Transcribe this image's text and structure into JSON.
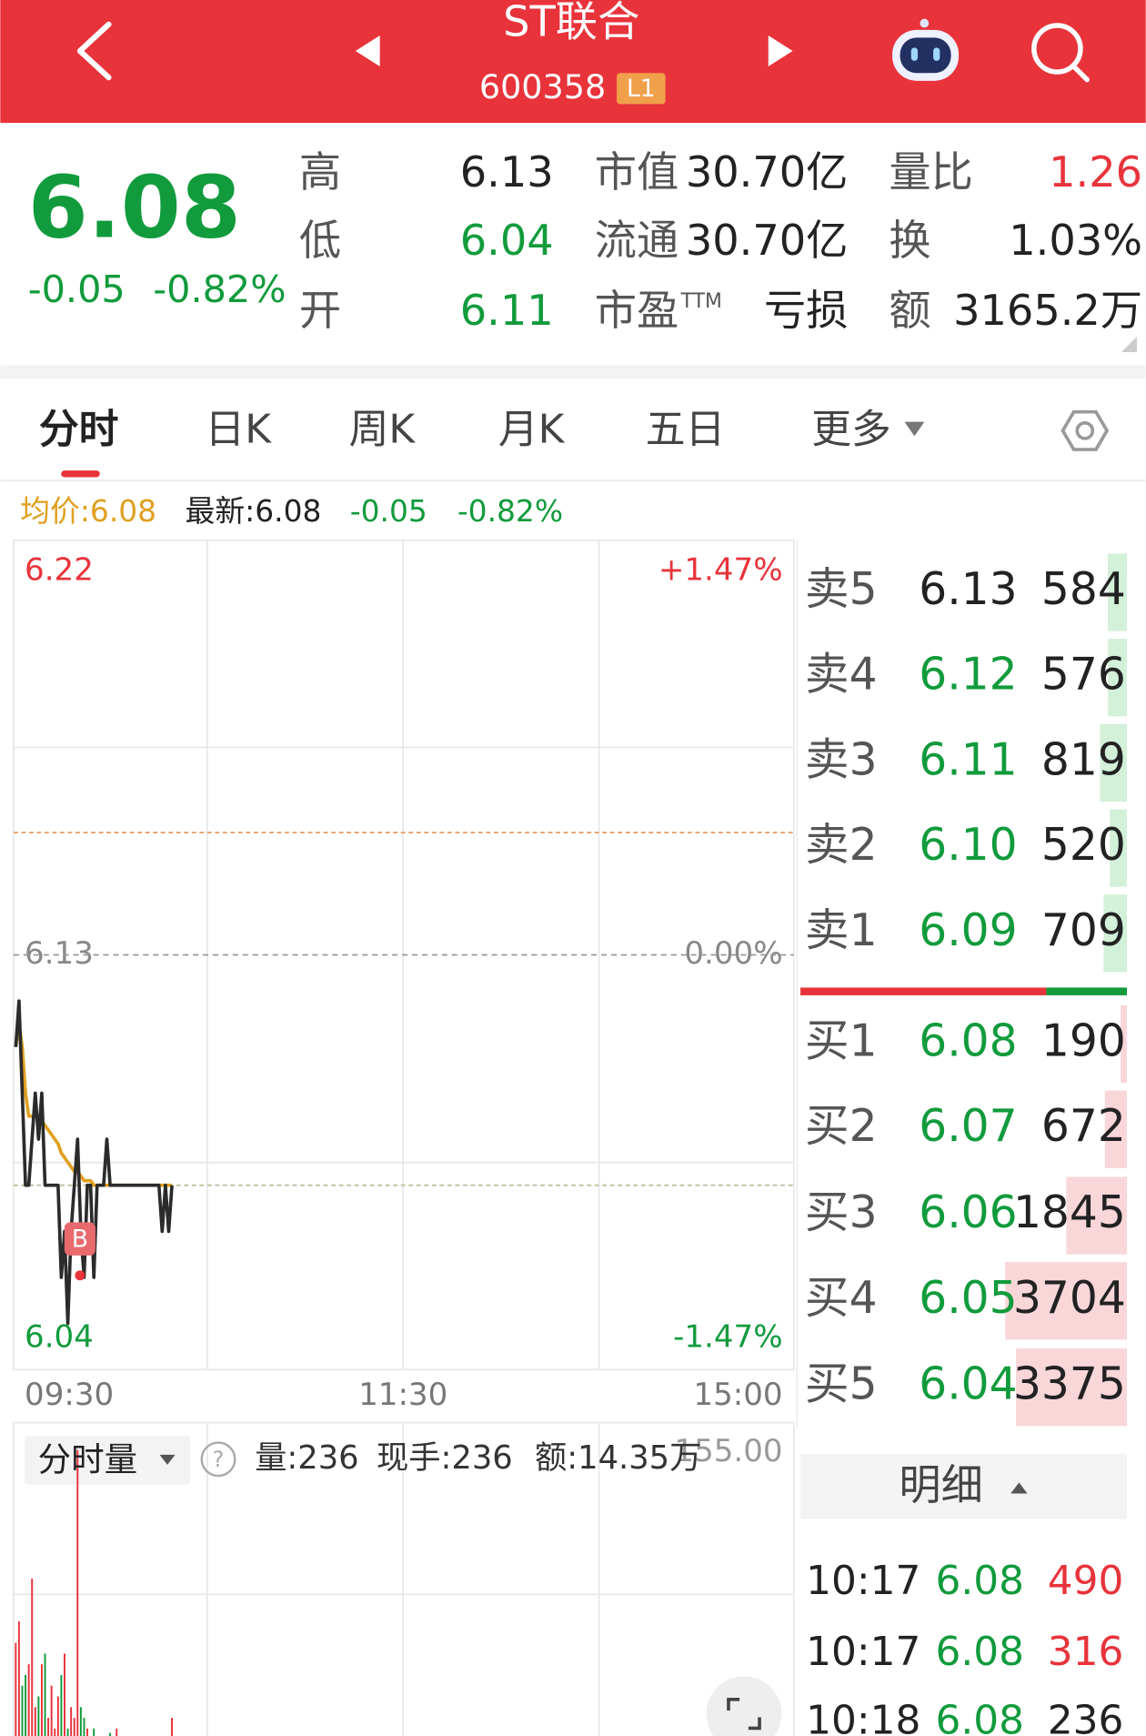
{
  "header": {
    "title": "ST联合",
    "code": "600358",
    "badge": "L1"
  },
  "quote": {
    "price": "6.08",
    "change": "-0.05",
    "change_pct": "-0.82%",
    "stats": [
      [
        {
          "label": "高",
          "value": "6.13",
          "color": "#222222"
        },
        {
          "label": "市值",
          "value": "30.70亿",
          "color": "#222222"
        },
        {
          "label": "量比",
          "value": "1.26",
          "color": "#e8333b"
        }
      ],
      [
        {
          "label": "低",
          "value": "6.04",
          "color": "#119b3c"
        },
        {
          "label": "流通",
          "value": "30.70亿",
          "color": "#222222"
        },
        {
          "label": "换",
          "value": "1.03%",
          "color": "#222222"
        }
      ],
      [
        {
          "label": "开",
          "value": "6.11",
          "color": "#119b3c"
        },
        {
          "label": "市盈",
          "label_sup": "TTM",
          "value": "亏损",
          "color": "#222222"
        },
        {
          "label": "额",
          "value": "3165.2万",
          "color": "#222222"
        }
      ]
    ]
  },
  "tabs": [
    "分时",
    "日K",
    "周K",
    "月K",
    "五日",
    "更多"
  ],
  "info_bar": {
    "avg": "均价:6.08",
    "latest": "最新:6.08",
    "change": "-0.05",
    "change_pct": "-0.82%"
  },
  "minute_chart": {
    "ylim": [
      6.04,
      6.22
    ],
    "yticks": [
      6.22,
      6.13,
      6.04
    ],
    "pct_labels": [
      "+1.47%",
      "0.00%",
      "-1.47%"
    ],
    "times": [
      "09:30",
      "11:30",
      "15:00"
    ],
    "marker": "B",
    "price": [
      6.11,
      6.12,
      6.1,
      6.08,
      6.08,
      6.09,
      6.1,
      6.09,
      6.1,
      6.08,
      6.08,
      6.08,
      6.08,
      6.08,
      6.06,
      6.07,
      6.05,
      6.07,
      6.08,
      6.09,
      6.07,
      6.06,
      6.08,
      6.08,
      6.06,
      6.08,
      6.08,
      6.08,
      6.09,
      6.08,
      6.08,
      6.08,
      6.08,
      6.08,
      6.08,
      6.08,
      6.08,
      6.08,
      6.08,
      6.08,
      6.08,
      6.08,
      6.08,
      6.08,
      6.08,
      6.07,
      6.08,
      6.07,
      6.08
    ],
    "avg": [
      6.11,
      6.115,
      6.11,
      6.1,
      6.095,
      6.095,
      6.095,
      6.095,
      6.094,
      6.093,
      6.092,
      6.091,
      6.09,
      6.089,
      6.087,
      6.086,
      6.085,
      6.084,
      6.083,
      6.083,
      6.082,
      6.081,
      6.081,
      6.081,
      6.08,
      6.08,
      6.08,
      6.08,
      6.08,
      6.08,
      6.08,
      6.08,
      6.08,
      6.08,
      6.08,
      6.08,
      6.08,
      6.08,
      6.08,
      6.08,
      6.08,
      6.08,
      6.08,
      6.08,
      6.08,
      6.08,
      6.08,
      6.08,
      6.08
    ]
  },
  "volume_chart": {
    "selector": "分时量",
    "volume_text": "量:236",
    "hand_text": "现手:236",
    "amount_text": "额:14.35万",
    "ylim": [
      0,
      155
    ],
    "ytick": {
      "value": 155,
      "label": "155.00"
    },
    "values": [
      60,
      70,
      40,
      45,
      50,
      90,
      30,
      35,
      50,
      55,
      25,
      40,
      20,
      35,
      45,
      55,
      20,
      30,
      25,
      150,
      30,
      25,
      20,
      15,
      20,
      10,
      15,
      12,
      10,
      18,
      8,
      20,
      10,
      6,
      5,
      8,
      4,
      6,
      3,
      5,
      4,
      10,
      3,
      5,
      4,
      6,
      8,
      5,
      25
    ]
  },
  "order_book": {
    "asks": [
      {
        "label": "卖5",
        "price": "6.13",
        "volume": 584
      },
      {
        "label": "卖4",
        "price": "6.12",
        "volume": 576
      },
      {
        "label": "卖3",
        "price": "6.11",
        "volume": 819
      },
      {
        "label": "卖2",
        "price": "6.10",
        "volume": 520
      },
      {
        "label": "卖1",
        "price": "6.09",
        "volume": 709
      }
    ],
    "bids": [
      {
        "label": "买1",
        "price": "6.08",
        "volume": 190
      },
      {
        "label": "买2",
        "price": "6.07",
        "volume": 672
      },
      {
        "label": "买3",
        "price": "6.06",
        "volume": 1845
      },
      {
        "label": "买4",
        "price": "6.05",
        "volume": 3704
      },
      {
        "label": "买5",
        "price": "6.04",
        "volume": 3375
      }
    ]
  },
  "detail": {
    "button": "明细",
    "trades": [
      {
        "time": "10:17",
        "price": "6.08",
        "volume": "490",
        "color": "#e8333b"
      },
      {
        "time": "10:17",
        "price": "6.08",
        "volume": "316",
        "color": "#e8333b"
      },
      {
        "time": "10:18",
        "price": "6.08",
        "volume": "236",
        "color": "#222222"
      }
    ]
  }
}
